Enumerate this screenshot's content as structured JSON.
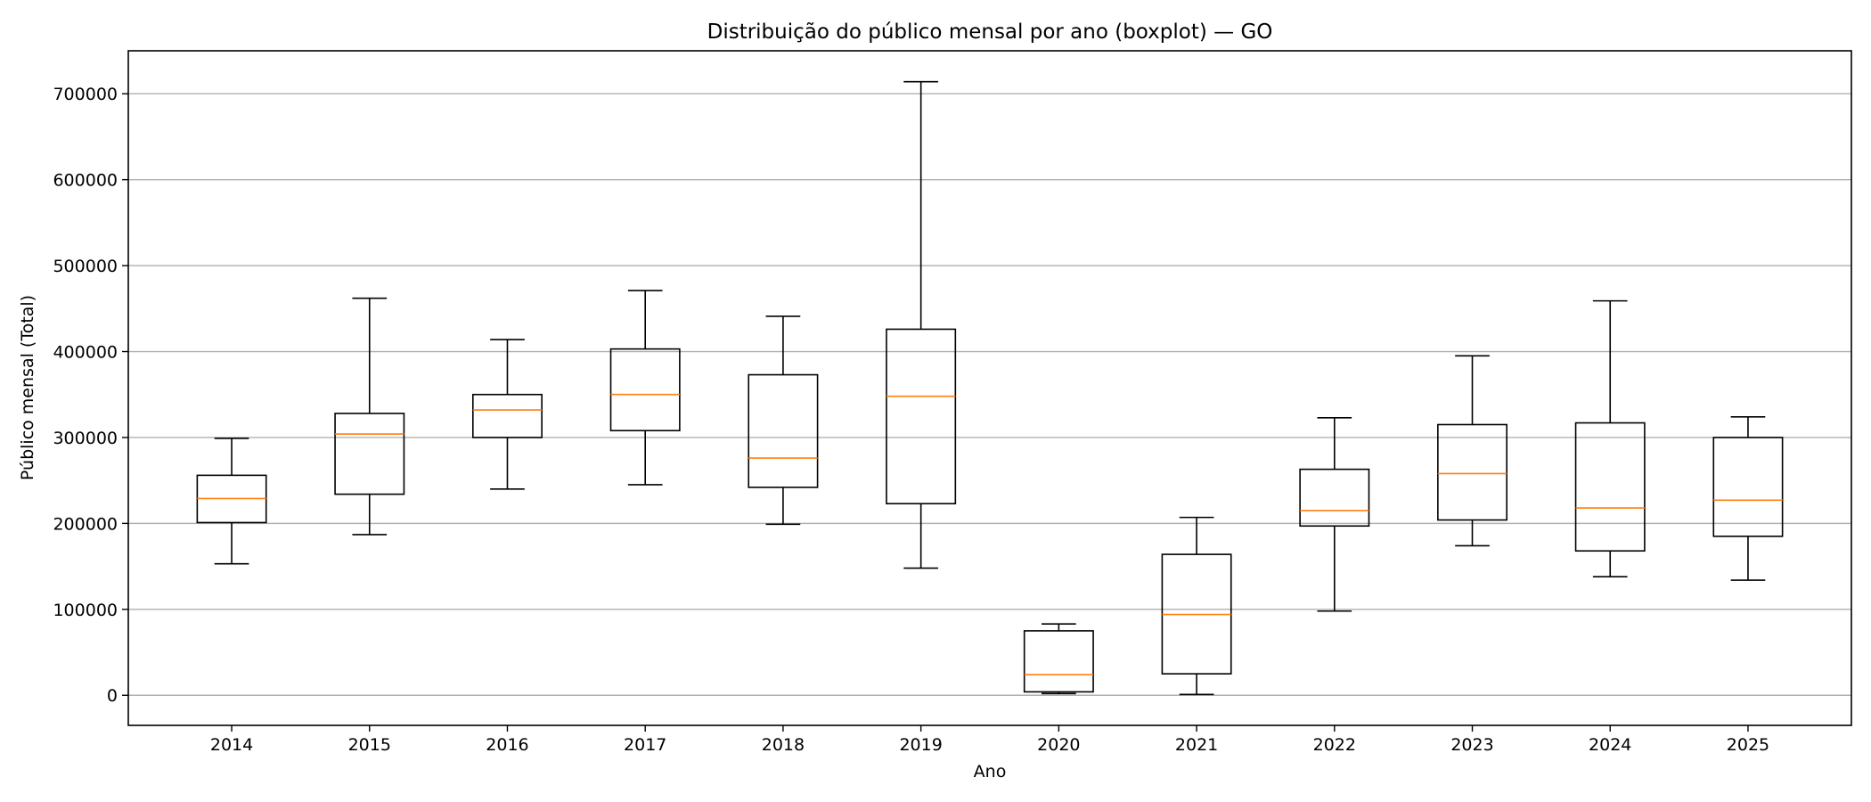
{
  "chart_data": {
    "type": "boxplot",
    "title": "Distribuição do público mensal por ano (boxplot) — GO",
    "xlabel": "Ano",
    "ylabel": "Público mensal (Total)",
    "ylim": [
      -35000,
      750000
    ],
    "yticks": [
      0,
      100000,
      200000,
      300000,
      400000,
      500000,
      600000,
      700000
    ],
    "ytick_labels": [
      "0",
      "100000",
      "200000",
      "300000",
      "400000",
      "500000",
      "600000",
      "700000"
    ],
    "grid": "y",
    "colors": {
      "box": "#000000",
      "median": "#ff7f0e",
      "grid": "#b0b0b0"
    },
    "categories": [
      "2014",
      "2015",
      "2016",
      "2017",
      "2018",
      "2019",
      "2020",
      "2021",
      "2022",
      "2023",
      "2024",
      "2025"
    ],
    "boxes": [
      {
        "whisker_low": 153000,
        "q1": 201000,
        "median": 229000,
        "q3": 256000,
        "whisker_high": 299000
      },
      {
        "whisker_low": 187000,
        "q1": 234000,
        "median": 304000,
        "q3": 328000,
        "whisker_high": 462000
      },
      {
        "whisker_low": 240000,
        "q1": 300000,
        "median": 332000,
        "q3": 350000,
        "whisker_high": 414000
      },
      {
        "whisker_low": 245000,
        "q1": 308000,
        "median": 350000,
        "q3": 403000,
        "whisker_high": 471000
      },
      {
        "whisker_low": 199000,
        "q1": 242000,
        "median": 276000,
        "q3": 373000,
        "whisker_high": 441000
      },
      {
        "whisker_low": 148000,
        "q1": 223000,
        "median": 348000,
        "q3": 426000,
        "whisker_high": 714000
      },
      {
        "whisker_low": 2000,
        "q1": 4000,
        "median": 24000,
        "q3": 75000,
        "whisker_high": 83000
      },
      {
        "whisker_low": 1000,
        "q1": 25000,
        "median": 94000,
        "q3": 164000,
        "whisker_high": 207000
      },
      {
        "whisker_low": 98000,
        "q1": 197000,
        "median": 215000,
        "q3": 263000,
        "whisker_high": 323000
      },
      {
        "whisker_low": 174000,
        "q1": 204000,
        "median": 258000,
        "q3": 315000,
        "whisker_high": 395000
      },
      {
        "whisker_low": 138000,
        "q1": 168000,
        "median": 218000,
        "q3": 317000,
        "whisker_high": 459000
      },
      {
        "whisker_low": 134000,
        "q1": 185000,
        "median": 227000,
        "q3": 300000,
        "whisker_high": 324000
      }
    ]
  }
}
